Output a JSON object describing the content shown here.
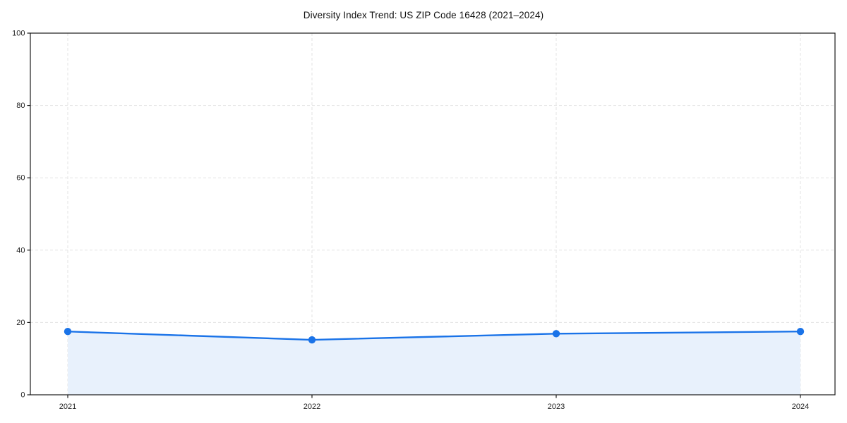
{
  "chart": {
    "title": "Diversity Index Trend: US ZIP Code 16428 (2021–2024)"
  },
  "chart_data": {
    "type": "area",
    "categories": [
      "2021",
      "2022",
      "2023",
      "2024"
    ],
    "values": [
      17.5,
      15.2,
      16.9,
      17.5
    ],
    "title": "Diversity Index Trend: US ZIP Code 16428 (2021–2024)",
    "xlabel": "",
    "ylabel": "",
    "ylim": [
      0,
      100
    ],
    "yticks": [
      0,
      20,
      40,
      60,
      80,
      100
    ],
    "grid": "dashed",
    "legend_position": "none",
    "colors": {
      "line": "#1a73e8",
      "marker": "#1a73e8",
      "fill": "#e8f1fc",
      "grid": "#e3e3e3",
      "spine": "#1a1a1a",
      "tick_label": "#222222",
      "background": "#ffffff"
    }
  }
}
